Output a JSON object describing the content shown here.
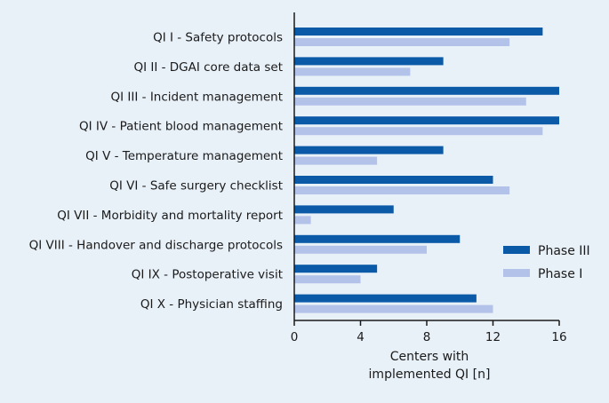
{
  "chart_data": {
    "type": "bar",
    "orientation": "horizontal",
    "categories": [
      "QI I - Safety protocols",
      "QI II - DGAI core data set",
      "QI III - Incident management",
      "QI IV - Patient blood management",
      "QI V  - Temperature management",
      "QI VI - Safe surgery checklist",
      "QI VII - Morbidity and mortality report",
      "QI VIII - Handover and discharge protocols",
      "QI IX - Postoperative visit",
      "QI X - Physician staffing"
    ],
    "series": [
      {
        "name": "Phase III",
        "color": "#0a5aa8",
        "values": [
          15,
          9,
          16,
          16,
          9,
          12,
          6,
          10,
          5,
          11
        ]
      },
      {
        "name": "Phase I",
        "color": "#b3c2e8",
        "values": [
          13,
          7,
          14,
          15,
          5,
          13,
          1,
          8,
          4,
          12
        ]
      }
    ],
    "xlabel_line1": "Centers with",
    "xlabel_line2": "implemented QI [n]",
    "xlim": [
      0,
      16
    ],
    "xticks": [
      "0",
      "4",
      "8",
      "12",
      "16"
    ],
    "legend_position": "right",
    "grid": false,
    "background": "#e8f0f8"
  }
}
